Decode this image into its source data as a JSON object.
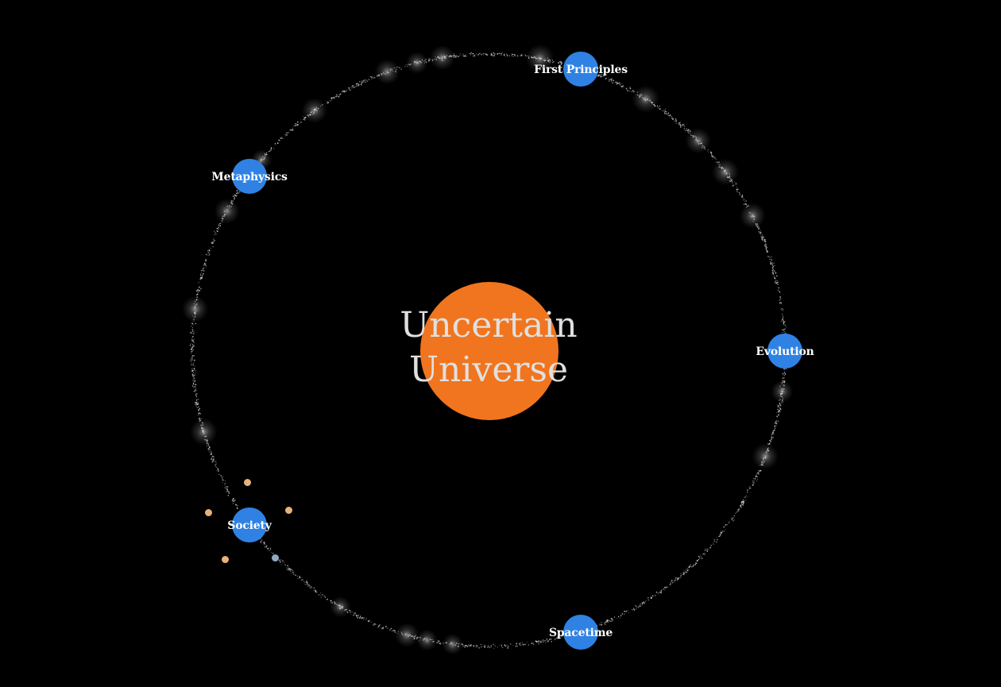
{
  "center": {
    "title_line1": "Uncertain",
    "title_line2": "Universe",
    "color": "#f0751e"
  },
  "planets": [
    {
      "id": "first-principles",
      "label": "First Principles"
    },
    {
      "id": "metaphysics",
      "label": "Metaphysics"
    },
    {
      "id": "evolution",
      "label": "Evolution"
    },
    {
      "id": "society",
      "label": "Society"
    },
    {
      "id": "spacetime",
      "label": "Spacetime"
    }
  ],
  "colors": {
    "background": "#000000",
    "planet": "#2f82e3",
    "orbit": "#d8d8d8",
    "moon_orange": "#e8b27a",
    "moon_blue": "#8fa9c2"
  }
}
